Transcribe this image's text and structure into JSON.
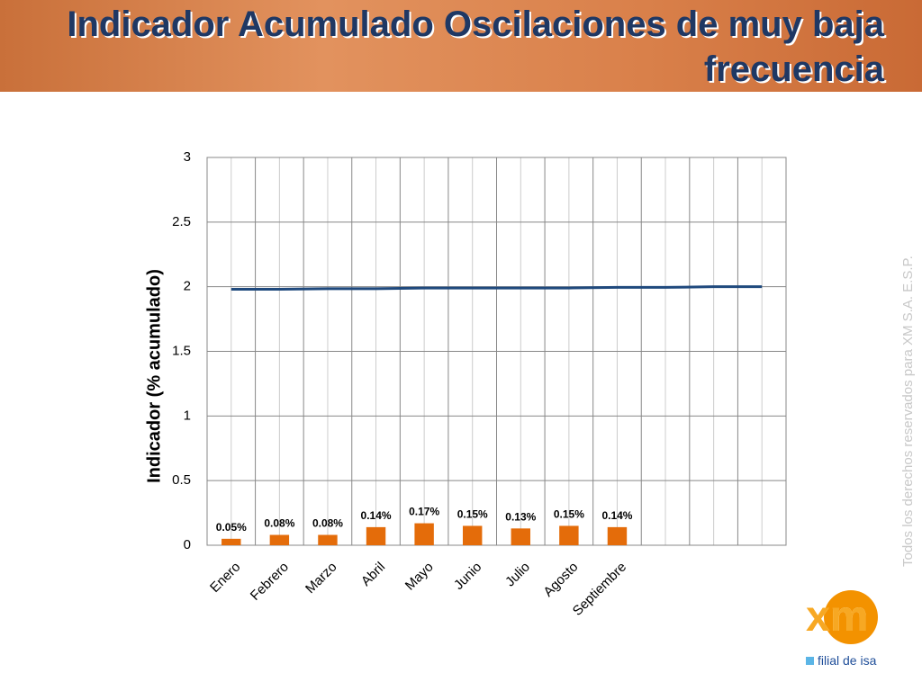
{
  "header": {
    "title": "Indicador Acumulado Oscilaciones de muy baja frecuencia"
  },
  "chart_data": {
    "type": "bar",
    "ylabel": "Indicador (% acumulado)",
    "categories": [
      "Enero",
      "Febrero",
      "Marzo",
      "Abril",
      "Mayo",
      "Junio",
      "Julio",
      "Agosto",
      "Septiembre",
      null,
      null,
      null
    ],
    "series": [
      {
        "type": "bar",
        "color": "#e46c0a",
        "values": [
          0.05,
          0.08,
          0.08,
          0.14,
          0.17,
          0.15,
          0.13,
          0.15,
          0.14,
          null,
          null,
          null
        ],
        "value_labels": [
          "0.05%",
          "0.08%",
          "0.08%",
          "0.14%",
          "0.17%",
          "0.15%",
          "0.13%",
          "0.15%",
          "0.14%",
          null,
          null,
          null
        ]
      },
      {
        "type": "line",
        "color": "#1f497d",
        "values": [
          1.98,
          1.98,
          1.985,
          1.985,
          1.99,
          1.99,
          1.99,
          1.99,
          1.995,
          1.995,
          2.0,
          2.0
        ]
      }
    ],
    "ylim": [
      0,
      3
    ],
    "yticks": [
      0,
      0.5,
      1,
      1.5,
      2,
      2.5,
      3
    ],
    "grid": true
  },
  "footer": {
    "rights": "Todos los derechos reservados para XM S.A. E.S.P.",
    "logo": "xm",
    "tagline": "filial de isa"
  }
}
